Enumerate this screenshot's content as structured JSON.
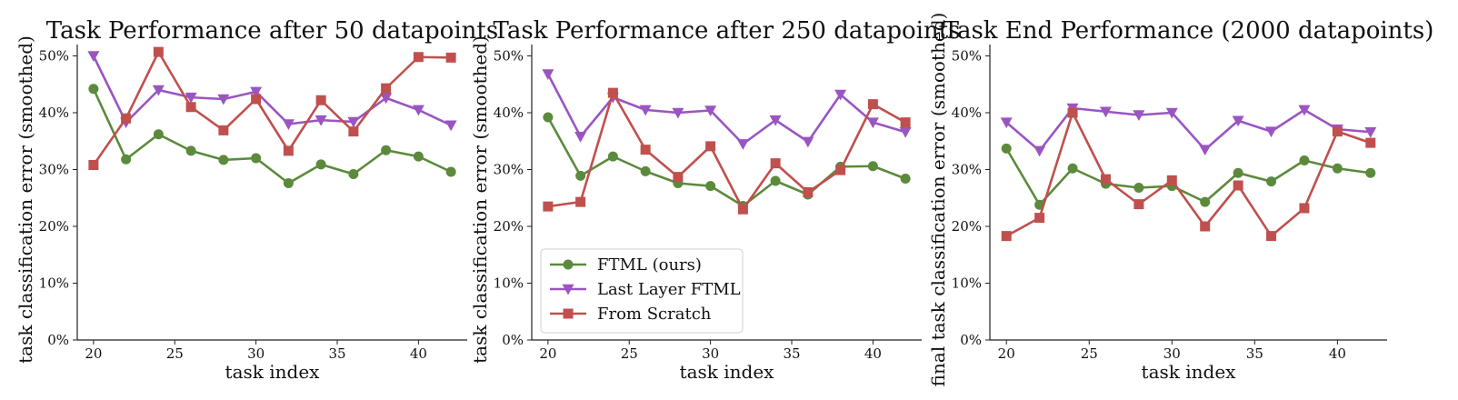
{
  "chart_data": [
    {
      "type": "line",
      "title": "Task Performance after 50 datapoints",
      "xlabel": "task index",
      "ylabel": "task classification error (smoothed)",
      "xlim": [
        19,
        43
      ],
      "ylim": [
        0,
        0.52
      ],
      "xticks": [
        20,
        25,
        30,
        35,
        40
      ],
      "yticks": [
        0,
        0.1,
        0.2,
        0.3,
        0.4,
        0.5
      ],
      "ytick_labels": [
        "0%",
        "10%",
        "20%",
        "30%",
        "40%",
        "50%"
      ],
      "x": [
        20,
        22,
        24,
        26,
        28,
        30,
        32,
        34,
        36,
        38,
        40,
        42
      ],
      "series": [
        {
          "name": "FTML (ours)",
          "color": "#5b8a3c",
          "marker": "circle",
          "values": [
            0.442,
            0.318,
            0.362,
            0.333,
            0.317,
            0.32,
            0.276,
            0.309,
            0.292,
            0.334,
            0.323,
            0.296
          ]
        },
        {
          "name": "Last Layer FTML",
          "color": "#9a55c2",
          "marker": "triangle-down",
          "values": [
            0.5,
            0.383,
            0.44,
            0.427,
            0.424,
            0.437,
            0.38,
            0.387,
            0.384,
            0.426,
            0.405,
            0.378
          ]
        },
        {
          "name": "From Scratch",
          "color": "#c0504d",
          "marker": "square",
          "values": [
            0.308,
            0.39,
            0.507,
            0.41,
            0.369,
            0.424,
            0.333,
            0.422,
            0.367,
            0.443,
            0.498,
            0.497
          ]
        }
      ]
    },
    {
      "type": "line",
      "title": "Task Performance after 250 datapoints",
      "xlabel": "task index",
      "ylabel": "task classification error (smoothed)",
      "xlim": [
        19,
        43
      ],
      "ylim": [
        0,
        0.52
      ],
      "xticks": [
        20,
        25,
        30,
        35,
        40
      ],
      "yticks": [
        0,
        0.1,
        0.2,
        0.3,
        0.4,
        0.5
      ],
      "ytick_labels": [
        "0%",
        "10%",
        "20%",
        "30%",
        "40%",
        "50%"
      ],
      "x": [
        20,
        22,
        24,
        26,
        28,
        30,
        32,
        34,
        36,
        38,
        40,
        42
      ],
      "legend": {
        "placement": "lower-left"
      },
      "series": [
        {
          "name": "FTML (ours)",
          "color": "#5b8a3c",
          "marker": "circle",
          "values": [
            0.392,
            0.289,
            0.323,
            0.297,
            0.276,
            0.271,
            0.236,
            0.28,
            0.256,
            0.305,
            0.306,
            0.284
          ]
        },
        {
          "name": "Last Layer FTML",
          "color": "#9a55c2",
          "marker": "triangle-down",
          "values": [
            0.468,
            0.358,
            0.427,
            0.405,
            0.4,
            0.404,
            0.345,
            0.387,
            0.349,
            0.432,
            0.383,
            0.366
          ]
        },
        {
          "name": "From Scratch",
          "color": "#c0504d",
          "marker": "square",
          "values": [
            0.235,
            0.243,
            0.435,
            0.335,
            0.287,
            0.341,
            0.23,
            0.311,
            0.26,
            0.299,
            0.415,
            0.383
          ]
        }
      ]
    },
    {
      "type": "line",
      "title": "Task End Performance (2000 datapoints)",
      "xlabel": "task index",
      "ylabel": "final task classification error (smoothed)",
      "xlim": [
        19,
        43
      ],
      "ylim": [
        0,
        0.52
      ],
      "xticks": [
        20,
        25,
        30,
        35,
        40
      ],
      "yticks": [
        0,
        0.1,
        0.2,
        0.3,
        0.4,
        0.5
      ],
      "ytick_labels": [
        "0%",
        "10%",
        "20%",
        "30%",
        "40%",
        "50%"
      ],
      "x": [
        20,
        22,
        24,
        26,
        28,
        30,
        32,
        34,
        36,
        38,
        40,
        42
      ],
      "series": [
        {
          "name": "FTML (ours)",
          "color": "#5b8a3c",
          "marker": "circle",
          "values": [
            0.337,
            0.238,
            0.302,
            0.275,
            0.268,
            0.271,
            0.243,
            0.294,
            0.279,
            0.316,
            0.302,
            0.294
          ]
        },
        {
          "name": "Last Layer FTML",
          "color": "#9a55c2",
          "marker": "triangle-down",
          "values": [
            0.383,
            0.333,
            0.408,
            0.402,
            0.396,
            0.4,
            0.335,
            0.386,
            0.367,
            0.405,
            0.371,
            0.366
          ]
        },
        {
          "name": "From Scratch",
          "color": "#c0504d",
          "marker": "square",
          "values": [
            0.183,
            0.215,
            0.4,
            0.283,
            0.239,
            0.281,
            0.2,
            0.272,
            0.183,
            0.232,
            0.367,
            0.347
          ]
        }
      ]
    }
  ]
}
